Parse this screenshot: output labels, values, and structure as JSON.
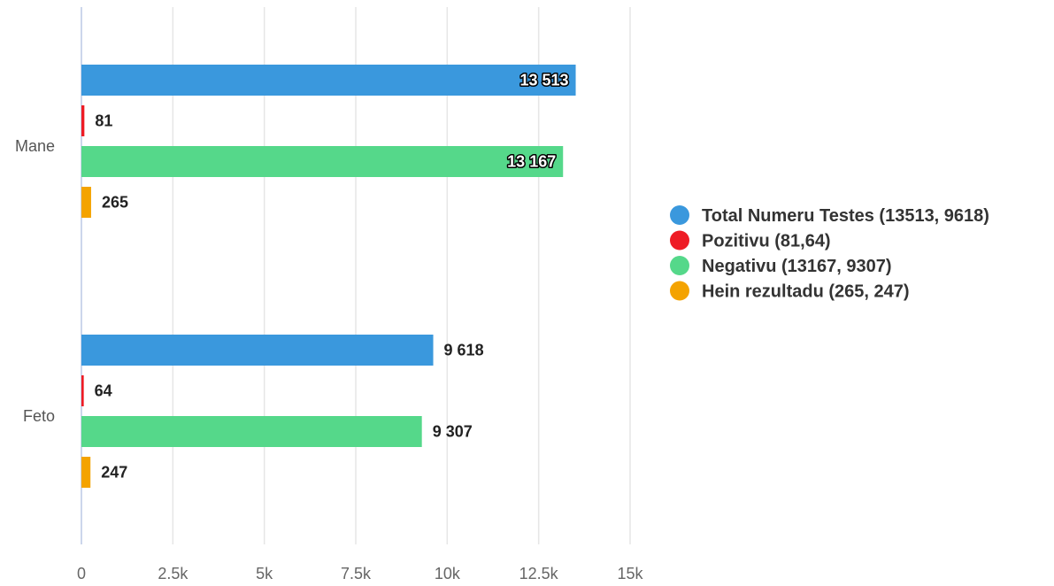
{
  "chart_data": {
    "type": "bar",
    "orientation": "horizontal",
    "categories": [
      "Mane",
      "Feto"
    ],
    "series": [
      {
        "name": "Total Numeru Testes (13513, 9618)",
        "values": [
          13513,
          9618
        ],
        "labels": [
          "13 513",
          "9 618"
        ],
        "color": "#3a98dd"
      },
      {
        "name": "Pozitivu (81,64)",
        "values": [
          81,
          64
        ],
        "labels": [
          "81",
          "64"
        ],
        "color": "#ee1c25"
      },
      {
        "name": "Negativu (13167, 9307)",
        "values": [
          13167,
          9307
        ],
        "labels": [
          "13 167",
          "9 307"
        ],
        "color": "#55d88a"
      },
      {
        "name": "Hein rezultadu (265, 247)",
        "values": [
          265,
          247
        ],
        "labels": [
          "265",
          "247"
        ],
        "color": "#f4a300"
      }
    ],
    "x_ticks": [
      0,
      2500,
      5000,
      7500,
      10000,
      12500,
      15000
    ],
    "x_tick_labels": [
      "0",
      "2.5k",
      "5k",
      "7.5k",
      "10k",
      "12.5k",
      "15k"
    ],
    "xlim": [
      0,
      15000
    ],
    "grid": true,
    "legend_position": "right",
    "title": "",
    "xlabel": "",
    "ylabel": ""
  }
}
